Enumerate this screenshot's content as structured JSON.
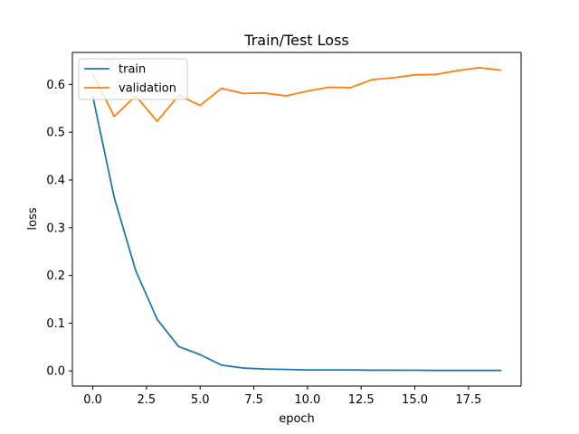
{
  "chart_data": {
    "type": "line",
    "title": "Train/Test Loss",
    "xlabel": "epoch",
    "ylabel": "loss",
    "xlim": [
      -0.95,
      19.95
    ],
    "ylim": [
      -0.0318,
      0.667
    ],
    "xticks": [
      0.0,
      2.5,
      5.0,
      7.5,
      10.0,
      12.5,
      15.0,
      17.5
    ],
    "xtick_labels": [
      "0.0",
      "2.5",
      "5.0",
      "7.5",
      "10.0",
      "12.5",
      "15.0",
      "17.5"
    ],
    "yticks": [
      0.0,
      0.1,
      0.2,
      0.3,
      0.4,
      0.5,
      0.6
    ],
    "ytick_labels": [
      "0.0",
      "0.1",
      "0.2",
      "0.3",
      "0.4",
      "0.5",
      "0.6"
    ],
    "grid": false,
    "legend_position": "top-left",
    "x": [
      0,
      1,
      2,
      3,
      4,
      5,
      6,
      7,
      8,
      9,
      10,
      11,
      12,
      13,
      14,
      15,
      16,
      17,
      18,
      19
    ],
    "series": [
      {
        "name": "train",
        "color": "#1f77b4",
        "values": [
          0.575,
          0.363,
          0.21,
          0.108,
          0.051,
          0.034,
          0.012,
          0.006,
          0.004,
          0.003,
          0.002,
          0.002,
          0.002,
          0.0015,
          0.0015,
          0.0013,
          0.001,
          0.001,
          0.001,
          0.001
        ]
      },
      {
        "name": "validation",
        "color": "#ff7f0e",
        "values": [
          0.622,
          0.533,
          0.576,
          0.523,
          0.577,
          0.556,
          0.592,
          0.581,
          0.582,
          0.576,
          0.586,
          0.594,
          0.593,
          0.61,
          0.614,
          0.62,
          0.621,
          0.629,
          0.635,
          0.63
        ]
      }
    ]
  }
}
